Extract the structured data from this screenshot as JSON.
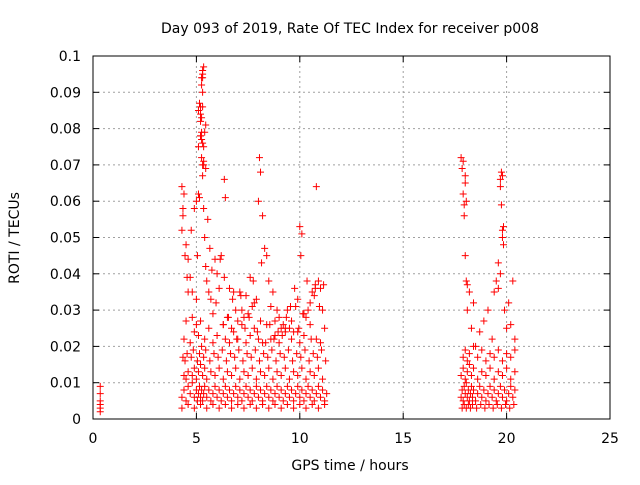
{
  "chart_data": {
    "type": "scatter",
    "title": "Day 093 of 2019, Rate Of TEC Index for receiver p008",
    "xlabel": "GPS time / hours",
    "ylabel": "ROTI / TECUs",
    "xlim": [
      0,
      25
    ],
    "ylim": [
      0,
      0.1
    ],
    "x_ticks": [
      "0",
      "5",
      "10",
      "15",
      "20",
      "25"
    ],
    "y_ticks": [
      "0",
      "0.01",
      "0.02",
      "0.03",
      "0.04",
      "0.05",
      "0.06",
      "0.07",
      "0.08",
      "0.09",
      "0.1"
    ],
    "grid": true,
    "marker": "+",
    "color": "#ff0000",
    "series": [
      {
        "x": [
          0.35,
          0.35,
          0.35,
          0.35,
          0.35,
          0.35,
          4.3,
          4.4,
          4.5,
          4.6,
          4.7,
          4.8,
          4.9,
          5.0,
          5.05,
          5.1,
          5.15,
          5.2,
          5.25,
          5.3,
          5.35,
          5.4,
          5.5,
          5.6,
          5.7,
          5.8,
          5.9,
          6.0,
          6.1,
          6.2,
          6.3,
          6.4,
          6.5,
          6.6,
          6.7,
          6.8,
          6.9,
          7.0,
          7.1,
          7.2,
          7.3,
          7.4,
          7.5,
          7.6,
          7.7,
          7.8,
          7.9,
          8.0,
          8.1,
          8.2,
          8.3,
          8.4,
          8.5,
          8.6,
          8.7,
          8.8,
          8.9,
          9.0,
          9.1,
          9.2,
          9.3,
          9.4,
          9.5,
          9.6,
          9.7,
          9.8,
          9.9,
          10.0,
          10.1,
          10.2,
          10.3,
          10.4,
          10.5,
          10.6,
          10.7,
          10.8,
          10.9,
          11.0,
          11.1,
          11.2,
          11.3,
          4.4,
          4.5,
          4.6,
          4.8,
          4.9,
          5.0,
          5.1,
          5.2,
          5.3,
          5.4,
          5.5,
          5.7,
          5.9,
          6.1,
          6.3,
          6.5,
          6.7,
          6.9,
          7.1,
          7.3,
          7.5,
          7.7,
          7.9,
          8.1,
          8.3,
          8.5,
          8.7,
          8.9,
          9.1,
          9.3,
          9.5,
          9.7,
          9.9,
          10.1,
          10.3,
          10.5,
          10.7,
          10.9,
          11.1,
          4.3,
          4.6,
          4.9,
          5.2,
          5.5,
          5.8,
          6.1,
          6.4,
          6.7,
          7.0,
          7.3,
          7.6,
          7.9,
          8.2,
          8.5,
          8.8,
          9.1,
          9.4,
          9.7,
          10.0,
          10.3,
          10.6,
          10.9,
          11.2,
          4.35,
          4.45,
          4.55,
          4.75,
          4.85,
          5.05,
          5.15,
          5.25,
          5.35,
          5.45,
          5.65,
          5.85,
          6.05,
          6.25,
          6.45,
          6.65,
          6.85,
          7.05,
          7.25,
          7.45,
          7.65,
          7.85,
          8.05,
          8.25,
          8.45,
          8.65,
          8.85,
          9.05,
          9.25,
          9.45,
          9.65,
          9.85,
          10.05,
          10.25,
          10.45,
          10.65,
          10.85,
          11.05,
          11.25,
          4.3,
          4.35,
          4.4,
          4.5,
          4.6,
          4.7,
          4.75,
          4.8,
          4.9,
          5.0,
          5.05,
          5.1,
          5.15,
          5.2,
          5.2,
          5.25,
          5.25,
          5.3,
          5.3,
          5.35,
          5.4,
          5.45,
          5.5,
          5.6,
          5.7,
          5.8,
          5.9,
          6.0,
          6.1,
          6.2,
          6.3,
          6.35,
          6.4,
          6.5,
          6.6,
          6.7,
          6.8,
          6.9,
          7.0,
          7.1,
          7.2,
          7.3,
          7.4,
          7.5,
          7.6,
          7.7,
          7.8,
          7.9,
          8.0,
          8.05,
          8.1,
          8.2,
          8.3,
          8.4,
          8.5,
          8.6,
          8.7,
          8.8,
          8.9,
          9.0,
          9.1,
          9.2,
          9.3,
          9.4,
          9.5,
          9.6,
          9.7,
          9.8,
          9.9,
          10.0,
          10.05,
          10.1,
          10.2,
          10.3,
          10.4,
          10.5,
          10.6,
          10.7,
          10.75,
          10.8,
          10.9,
          11.0,
          11.1,
          11.2,
          4.3,
          4.35,
          4.45,
          4.55,
          4.6,
          4.8,
          5.0,
          5.1,
          5.2,
          5.25,
          5.3,
          5.35,
          5.45,
          5.55,
          5.65,
          5.75,
          5.95,
          6.15,
          6.35,
          6.55,
          6.75,
          6.95,
          7.15,
          7.35,
          7.55,
          7.75,
          7.95,
          8.15,
          8.35,
          8.55,
          8.75,
          8.95,
          9.15,
          9.35,
          9.55,
          9.75,
          9.95,
          10.15,
          10.35,
          10.55,
          10.75,
          10.95,
          11.15,
          5.1,
          5.15,
          5.2,
          5.25,
          5.3,
          5.2,
          5.25,
          5.3,
          5.35,
          5.25,
          5.3,
          5.3,
          5.3,
          5.35,
          5.35,
          5.4,
          5.45,
          4.4,
          4.5,
          4.7,
          4.9,
          5.0,
          5.1,
          5.2,
          5.4,
          5.6,
          5.8,
          6.0,
          6.3,
          6.4,
          6.6,
          6.8,
          7.0,
          7.2,
          7.4,
          7.6,
          7.8,
          8.0,
          8.1,
          8.2,
          8.4,
          8.6,
          8.8,
          9.0,
          9.3,
          9.6,
          9.9,
          10.0,
          10.2,
          10.5,
          10.8,
          11.0,
          17.8,
          17.85,
          17.9,
          17.95,
          18.0,
          18.05,
          18.1,
          18.15,
          18.2,
          18.25,
          18.3,
          18.35,
          18.4,
          18.5,
          18.6,
          18.7,
          18.8,
          18.9,
          19.0,
          19.1,
          19.2,
          19.3,
          19.4,
          19.5,
          19.6,
          19.7,
          19.8,
          19.9,
          20.0,
          20.1,
          20.2,
          20.3,
          20.4,
          17.8,
          17.9,
          18.0,
          18.1,
          18.2,
          18.3,
          18.4,
          18.6,
          18.8,
          19.0,
          19.2,
          19.4,
          19.6,
          19.8,
          20.0,
          20.2,
          20.4,
          17.85,
          17.95,
          18.05,
          18.15,
          18.25,
          18.35,
          18.55,
          18.75,
          18.95,
          19.15,
          19.35,
          19.55,
          19.75,
          19.95,
          20.15,
          20.35,
          17.8,
          17.85,
          17.9,
          17.95,
          18.0,
          18.0,
          18.05,
          18.1,
          18.1,
          18.2,
          18.3,
          18.4,
          18.5,
          18.7,
          18.9,
          19.1,
          19.3,
          19.4,
          19.5,
          19.6,
          19.7,
          19.7,
          19.75,
          19.8,
          19.8,
          19.85,
          19.9,
          20.0,
          20.1,
          20.2,
          20.3,
          20.4,
          17.9,
          18.0,
          18.1,
          18.2,
          18.4,
          18.6,
          18.8,
          19.0,
          19.2,
          19.4,
          19.6,
          19.8,
          20.0,
          20.2,
          20.4,
          17.9,
          17.95,
          18.0,
          18.05,
          19.6,
          19.7,
          19.75,
          19.8,
          19.85
        ],
        "y": [
          0.002,
          0.003,
          0.004,
          0.005,
          0.007,
          0.009,
          0.006,
          0.008,
          0.005,
          0.009,
          0.007,
          0.01,
          0.006,
          0.008,
          0.005,
          0.007,
          0.009,
          0.006,
          0.008,
          0.005,
          0.007,
          0.009,
          0.006,
          0.008,
          0.005,
          0.007,
          0.009,
          0.006,
          0.008,
          0.005,
          0.007,
          0.009,
          0.006,
          0.008,
          0.005,
          0.007,
          0.009,
          0.006,
          0.008,
          0.005,
          0.007,
          0.009,
          0.006,
          0.008,
          0.005,
          0.007,
          0.009,
          0.006,
          0.008,
          0.005,
          0.007,
          0.009,
          0.006,
          0.008,
          0.005,
          0.007,
          0.009,
          0.006,
          0.008,
          0.005,
          0.007,
          0.009,
          0.006,
          0.008,
          0.005,
          0.007,
          0.009,
          0.006,
          0.008,
          0.005,
          0.007,
          0.009,
          0.006,
          0.008,
          0.005,
          0.007,
          0.009,
          0.006,
          0.008,
          0.005,
          0.007,
          0.012,
          0.011,
          0.013,
          0.012,
          0.014,
          0.011,
          0.013,
          0.015,
          0.012,
          0.014,
          0.011,
          0.013,
          0.012,
          0.014,
          0.011,
          0.013,
          0.012,
          0.014,
          0.011,
          0.013,
          0.012,
          0.014,
          0.011,
          0.013,
          0.012,
          0.014,
          0.011,
          0.013,
          0.012,
          0.014,
          0.011,
          0.013,
          0.012,
          0.014,
          0.011,
          0.013,
          0.012,
          0.014,
          0.011,
          0.003,
          0.004,
          0.003,
          0.004,
          0.003,
          0.004,
          0.003,
          0.004,
          0.003,
          0.004,
          0.003,
          0.004,
          0.003,
          0.004,
          0.003,
          0.004,
          0.003,
          0.004,
          0.003,
          0.004,
          0.003,
          0.004,
          0.003,
          0.004,
          0.017,
          0.016,
          0.018,
          0.017,
          0.019,
          0.016,
          0.018,
          0.02,
          0.017,
          0.019,
          0.016,
          0.018,
          0.017,
          0.019,
          0.016,
          0.018,
          0.017,
          0.019,
          0.016,
          0.018,
          0.017,
          0.019,
          0.016,
          0.018,
          0.017,
          0.019,
          0.016,
          0.018,
          0.017,
          0.019,
          0.016,
          0.018,
          0.017,
          0.019,
          0.016,
          0.018,
          0.017,
          0.019,
          0.016,
          0.064,
          0.056,
          0.062,
          0.048,
          0.044,
          0.039,
          0.052,
          0.035,
          0.058,
          0.06,
          0.045,
          0.075,
          0.061,
          0.086,
          0.078,
          0.072,
          0.079,
          0.067,
          0.07,
          0.058,
          0.05,
          0.042,
          0.038,
          0.035,
          0.033,
          0.029,
          0.044,
          0.04,
          0.036,
          0.045,
          0.026,
          0.066,
          0.061,
          0.028,
          0.036,
          0.025,
          0.035,
          0.03,
          0.027,
          0.035,
          0.03,
          0.028,
          0.034,
          0.029,
          0.039,
          0.031,
          0.032,
          0.033,
          0.06,
          0.072,
          0.068,
          0.056,
          0.047,
          0.045,
          0.038,
          0.031,
          0.035,
          0.027,
          0.03,
          0.028,
          0.025,
          0.026,
          0.024,
          0.03,
          0.025,
          0.027,
          0.024,
          0.031,
          0.033,
          0.053,
          0.045,
          0.051,
          0.029,
          0.028,
          0.03,
          0.032,
          0.035,
          0.034,
          0.037,
          0.064,
          0.038,
          0.036,
          0.03,
          0.025,
          0.052,
          0.058,
          0.045,
          0.039,
          0.035,
          0.028,
          0.033,
          0.062,
          0.082,
          0.094,
          0.09,
          0.097,
          0.069,
          0.055,
          0.047,
          0.041,
          0.032,
          0.044,
          0.039,
          0.028,
          0.033,
          0.022,
          0.034,
          0.025,
          0.028,
          0.038,
          0.024,
          0.043,
          0.021,
          0.026,
          0.022,
          0.024,
          0.023,
          0.028,
          0.031,
          0.036,
          0.025,
          0.029,
          0.038,
          0.022,
          0.036,
          0.031,
          0.037,
          0.085,
          0.087,
          0.084,
          0.083,
          0.086,
          0.078,
          0.077,
          0.076,
          0.075,
          0.092,
          0.094,
          0.095,
          0.096,
          0.071,
          0.07,
          0.079,
          0.081,
          0.022,
          0.027,
          0.021,
          0.024,
          0.026,
          0.023,
          0.027,
          0.022,
          0.025,
          0.021,
          0.023,
          0.026,
          0.022,
          0.021,
          0.024,
          0.022,
          0.026,
          0.021,
          0.023,
          0.025,
          0.022,
          0.027,
          0.021,
          0.026,
          0.022,
          0.023,
          0.021,
          0.025,
          0.022,
          0.024,
          0.021,
          0.023,
          0.026,
          0.022,
          0.021,
          0.006,
          0.008,
          0.005,
          0.009,
          0.007,
          0.01,
          0.006,
          0.008,
          0.005,
          0.007,
          0.009,
          0.006,
          0.008,
          0.005,
          0.007,
          0.009,
          0.006,
          0.008,
          0.005,
          0.007,
          0.009,
          0.006,
          0.008,
          0.005,
          0.007,
          0.009,
          0.006,
          0.008,
          0.005,
          0.007,
          0.009,
          0.006,
          0.008,
          0.012,
          0.014,
          0.011,
          0.013,
          0.015,
          0.012,
          0.014,
          0.011,
          0.013,
          0.012,
          0.014,
          0.011,
          0.013,
          0.012,
          0.014,
          0.011,
          0.013,
          0.003,
          0.004,
          0.003,
          0.004,
          0.003,
          0.004,
          0.003,
          0.004,
          0.003,
          0.004,
          0.003,
          0.004,
          0.003,
          0.004,
          0.003,
          0.004,
          0.072,
          0.069,
          0.062,
          0.059,
          0.045,
          0.065,
          0.038,
          0.03,
          0.037,
          0.035,
          0.025,
          0.032,
          0.02,
          0.024,
          0.027,
          0.03,
          0.022,
          0.035,
          0.038,
          0.036,
          0.04,
          0.064,
          0.059,
          0.067,
          0.052,
          0.048,
          0.03,
          0.025,
          0.032,
          0.026,
          0.038,
          0.022,
          0.017,
          0.019,
          0.016,
          0.018,
          0.02,
          0.017,
          0.019,
          0.016,
          0.018,
          0.017,
          0.019,
          0.016,
          0.018,
          0.017,
          0.019,
          0.071,
          0.056,
          0.067,
          0.06,
          0.043,
          0.066,
          0.068,
          0.05,
          0.053
        ]
      }
    ]
  }
}
